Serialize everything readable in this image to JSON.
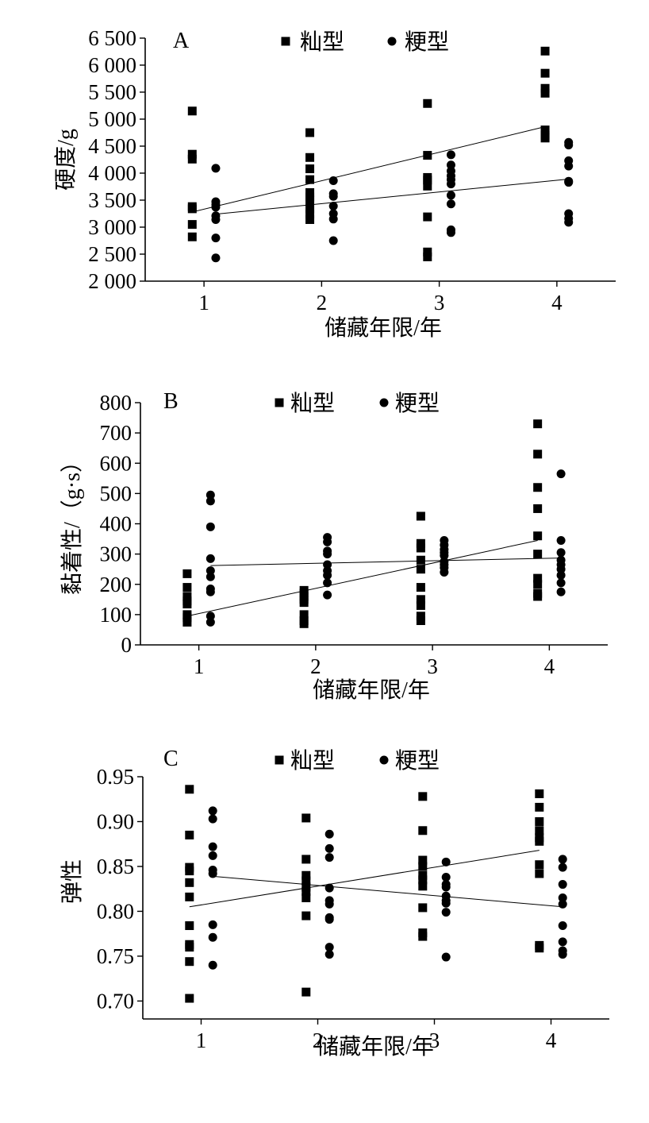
{
  "chart_data": [
    {
      "type": "scatter",
      "panel_label": "A",
      "xlabel": "储藏年限/年",
      "ylabel": "硬度/g",
      "xlim": [
        0.5,
        4.5
      ],
      "ylim": [
        2000,
        6500
      ],
      "xticks": [
        1,
        2,
        3,
        4
      ],
      "xtick_labels": [
        "1",
        "2",
        "3",
        "4"
      ],
      "yticks": [
        2000,
        2500,
        3000,
        3500,
        4000,
        4500,
        5000,
        5500,
        6000,
        6500
      ],
      "ytick_labels": [
        "2 000",
        "2 500",
        "3 000",
        "3 500",
        "4 000",
        "4 500",
        "5 000",
        "5 500",
        "6 000",
        "6 500"
      ],
      "legend_position": "top",
      "series": [
        {
          "name": "籼型",
          "marker": "square",
          "points": [
            [
              0.9,
              5150
            ],
            [
              0.9,
              4350
            ],
            [
              0.9,
              4260
            ],
            [
              0.9,
              3380
            ],
            [
              0.9,
              3340
            ],
            [
              0.9,
              3050
            ],
            [
              0.9,
              2820
            ],
            [
              1.9,
              4750
            ],
            [
              1.9,
              4290
            ],
            [
              1.9,
              4080
            ],
            [
              1.9,
              3880
            ],
            [
              1.9,
              3640
            ],
            [
              1.9,
              3560
            ],
            [
              1.9,
              3500
            ],
            [
              1.9,
              3340
            ],
            [
              1.9,
              3240
            ],
            [
              1.9,
              3140
            ],
            [
              2.9,
              5290
            ],
            [
              2.9,
              4330
            ],
            [
              2.9,
              3920
            ],
            [
              2.9,
              3870
            ],
            [
              2.9,
              3760
            ],
            [
              2.9,
              3190
            ],
            [
              2.9,
              2540
            ],
            [
              2.9,
              2450
            ],
            [
              3.9,
              6260
            ],
            [
              3.9,
              5850
            ],
            [
              3.9,
              5570
            ],
            [
              3.9,
              5480
            ],
            [
              3.9,
              4800
            ],
            [
              3.9,
              4700
            ],
            [
              3.9,
              4650
            ]
          ],
          "trend": [
            [
              0.9,
              3280
            ],
            [
              3.9,
              4860
            ]
          ]
        },
        {
          "name": "粳型",
          "marker": "circle",
          "points": [
            [
              1.1,
              4090
            ],
            [
              1.1,
              3470
            ],
            [
              1.1,
              3420
            ],
            [
              1.1,
              3370
            ],
            [
              1.1,
              3210
            ],
            [
              1.1,
              3140
            ],
            [
              1.1,
              2800
            ],
            [
              1.1,
              2430
            ],
            [
              2.1,
              3860
            ],
            [
              2.1,
              3620
            ],
            [
              2.1,
              3570
            ],
            [
              2.1,
              3390
            ],
            [
              2.1,
              3250
            ],
            [
              2.1,
              3150
            ],
            [
              2.1,
              2750
            ],
            [
              3.1,
              4340
            ],
            [
              3.1,
              4150
            ],
            [
              3.1,
              4040
            ],
            [
              3.1,
              3950
            ],
            [
              3.1,
              3880
            ],
            [
              3.1,
              3800
            ],
            [
              3.1,
              3590
            ],
            [
              3.1,
              3430
            ],
            [
              3.1,
              2950
            ],
            [
              3.1,
              2900
            ],
            [
              4.1,
              4570
            ],
            [
              4.1,
              4520
            ],
            [
              4.1,
              4230
            ],
            [
              4.1,
              4130
            ],
            [
              4.1,
              3850
            ],
            [
              4.1,
              3830
            ],
            [
              4.1,
              3250
            ],
            [
              4.1,
              3160
            ],
            [
              4.1,
              3090
            ]
          ],
          "trend": [
            [
              1.1,
              3240
            ],
            [
              4.1,
              3890
            ]
          ]
        }
      ]
    },
    {
      "type": "scatter",
      "panel_label": "B",
      "xlabel": "储藏年限/年",
      "ylabel": "黏着性/（g·s）",
      "xlim": [
        0.5,
        4.5
      ],
      "ylim": [
        0,
        800
      ],
      "xticks": [
        1,
        2,
        3,
        4
      ],
      "xtick_labels": [
        "1",
        "2",
        "3",
        "4"
      ],
      "yticks": [
        0,
        100,
        200,
        300,
        400,
        500,
        600,
        700,
        800
      ],
      "ytick_labels": [
        "0",
        "100",
        "200",
        "300",
        "400",
        "500",
        "600",
        "700",
        "800"
      ],
      "legend_position": "top",
      "series": [
        {
          "name": "籼型",
          "marker": "square",
          "points": [
            [
              0.9,
              235
            ],
            [
              0.9,
              190
            ],
            [
              0.9,
              160
            ],
            [
              0.9,
              145
            ],
            [
              0.9,
              135
            ],
            [
              0.9,
              100
            ],
            [
              0.9,
              90
            ],
            [
              0.9,
              75
            ],
            [
              1.9,
              180
            ],
            [
              1.9,
              170
            ],
            [
              1.9,
              160
            ],
            [
              1.9,
              150
            ],
            [
              1.9,
              140
            ],
            [
              1.9,
              100
            ],
            [
              1.9,
              80
            ],
            [
              1.9,
              70
            ],
            [
              2.9,
              425
            ],
            [
              2.9,
              335
            ],
            [
              2.9,
              320
            ],
            [
              2.9,
              280
            ],
            [
              2.9,
              250
            ],
            [
              2.9,
              190
            ],
            [
              2.9,
              150
            ],
            [
              2.9,
              130
            ],
            [
              2.9,
              95
            ],
            [
              2.9,
              80
            ],
            [
              3.9,
              730
            ],
            [
              3.9,
              630
            ],
            [
              3.9,
              520
            ],
            [
              3.9,
              450
            ],
            [
              3.9,
              360
            ],
            [
              3.9,
              300
            ],
            [
              3.9,
              220
            ],
            [
              3.9,
              200
            ],
            [
              3.9,
              170
            ],
            [
              3.9,
              160
            ]
          ],
          "trend": [
            [
              0.9,
              95
            ],
            [
              3.9,
              345
            ]
          ]
        },
        {
          "name": "粳型",
          "marker": "circle",
          "points": [
            [
              1.1,
              495
            ],
            [
              1.1,
              475
            ],
            [
              1.1,
              390
            ],
            [
              1.1,
              285
            ],
            [
              1.1,
              245
            ],
            [
              1.1,
              225
            ],
            [
              1.1,
              185
            ],
            [
              1.1,
              175
            ],
            [
              1.1,
              95
            ],
            [
              1.1,
              75
            ],
            [
              2.1,
              355
            ],
            [
              2.1,
              340
            ],
            [
              2.1,
              310
            ],
            [
              2.1,
              300
            ],
            [
              2.1,
              265
            ],
            [
              2.1,
              245
            ],
            [
              2.1,
              230
            ],
            [
              2.1,
              205
            ],
            [
              2.1,
              165
            ],
            [
              3.1,
              345
            ],
            [
              3.1,
              330
            ],
            [
              3.1,
              315
            ],
            [
              3.1,
              305
            ],
            [
              3.1,
              295
            ],
            [
              3.1,
              275
            ],
            [
              3.1,
              265
            ],
            [
              3.1,
              255
            ],
            [
              3.1,
              240
            ],
            [
              4.1,
              565
            ],
            [
              4.1,
              345
            ],
            [
              4.1,
              305
            ],
            [
              4.1,
              280
            ],
            [
              4.1,
              265
            ],
            [
              4.1,
              250
            ],
            [
              4.1,
              230
            ],
            [
              4.1,
              205
            ],
            [
              4.1,
              175
            ]
          ],
          "trend": [
            [
              1.1,
              262
            ],
            [
              4.1,
              287
            ]
          ]
        }
      ]
    },
    {
      "type": "scatter",
      "panel_label": "C",
      "xlabel": "储藏年限/年",
      "ylabel": "弹性",
      "xlim": [
        0.5,
        4.5
      ],
      "ylim": [
        0.68,
        0.95
      ],
      "xticks": [
        1,
        2,
        3,
        4
      ],
      "xtick_labels": [
        "1",
        "2",
        "3",
        "4"
      ],
      "yticks": [
        0.7,
        0.75,
        0.8,
        0.85,
        0.9,
        0.95
      ],
      "ytick_labels": [
        "0.70",
        "0.75",
        "0.80",
        "0.85",
        "0.90",
        "0.95"
      ],
      "legend_position": "top",
      "series": [
        {
          "name": "籼型",
          "marker": "square",
          "points": [
            [
              0.9,
              0.936
            ],
            [
              0.9,
              0.885
            ],
            [
              0.9,
              0.849
            ],
            [
              0.9,
              0.845
            ],
            [
              0.9,
              0.832
            ],
            [
              0.9,
              0.816
            ],
            [
              0.9,
              0.784
            ],
            [
              0.9,
              0.763
            ],
            [
              0.9,
              0.76
            ],
            [
              0.9,
              0.744
            ],
            [
              0.9,
              0.703
            ],
            [
              1.9,
              0.904
            ],
            [
              1.9,
              0.858
            ],
            [
              1.9,
              0.84
            ],
            [
              1.9,
              0.834
            ],
            [
              1.9,
              0.827
            ],
            [
              1.9,
              0.822
            ],
            [
              1.9,
              0.815
            ],
            [
              1.9,
              0.795
            ],
            [
              1.9,
              0.71
            ],
            [
              2.9,
              0.928
            ],
            [
              2.9,
              0.89
            ],
            [
              2.9,
              0.857
            ],
            [
              2.9,
              0.85
            ],
            [
              2.9,
              0.84
            ],
            [
              2.9,
              0.835
            ],
            [
              2.9,
              0.828
            ],
            [
              2.9,
              0.804
            ],
            [
              2.9,
              0.776
            ],
            [
              2.9,
              0.772
            ],
            [
              3.9,
              0.931
            ],
            [
              3.9,
              0.916
            ],
            [
              3.9,
              0.9
            ],
            [
              3.9,
              0.89
            ],
            [
              3.9,
              0.882
            ],
            [
              3.9,
              0.878
            ],
            [
              3.9,
              0.852
            ],
            [
              3.9,
              0.842
            ],
            [
              3.9,
              0.762
            ],
            [
              3.9,
              0.759
            ]
          ],
          "trend": [
            [
              0.9,
              0.805
            ],
            [
              3.9,
              0.868
            ]
          ]
        },
        {
          "name": "粳型",
          "marker": "circle",
          "points": [
            [
              1.1,
              0.912
            ],
            [
              1.1,
              0.903
            ],
            [
              1.1,
              0.872
            ],
            [
              1.1,
              0.862
            ],
            [
              1.1,
              0.846
            ],
            [
              1.1,
              0.842
            ],
            [
              1.1,
              0.785
            ],
            [
              1.1,
              0.771
            ],
            [
              1.1,
              0.74
            ],
            [
              2.1,
              0.886
            ],
            [
              2.1,
              0.87
            ],
            [
              2.1,
              0.86
            ],
            [
              2.1,
              0.826
            ],
            [
              2.1,
              0.812
            ],
            [
              2.1,
              0.808
            ],
            [
              2.1,
              0.793
            ],
            [
              2.1,
              0.791
            ],
            [
              2.1,
              0.76
            ],
            [
              2.1,
              0.752
            ],
            [
              3.1,
              0.855
            ],
            [
              3.1,
              0.838
            ],
            [
              3.1,
              0.83
            ],
            [
              3.1,
              0.827
            ],
            [
              3.1,
              0.817
            ],
            [
              3.1,
              0.812
            ],
            [
              3.1,
              0.809
            ],
            [
              3.1,
              0.799
            ],
            [
              3.1,
              0.749
            ],
            [
              4.1,
              0.858
            ],
            [
              4.1,
              0.849
            ],
            [
              4.1,
              0.83
            ],
            [
              4.1,
              0.815
            ],
            [
              4.1,
              0.808
            ],
            [
              4.1,
              0.784
            ],
            [
              4.1,
              0.766
            ],
            [
              4.1,
              0.756
            ],
            [
              4.1,
              0.752
            ]
          ],
          "trend": [
            [
              1.1,
              0.839
            ],
            [
              4.1,
              0.805
            ]
          ]
        }
      ]
    }
  ]
}
